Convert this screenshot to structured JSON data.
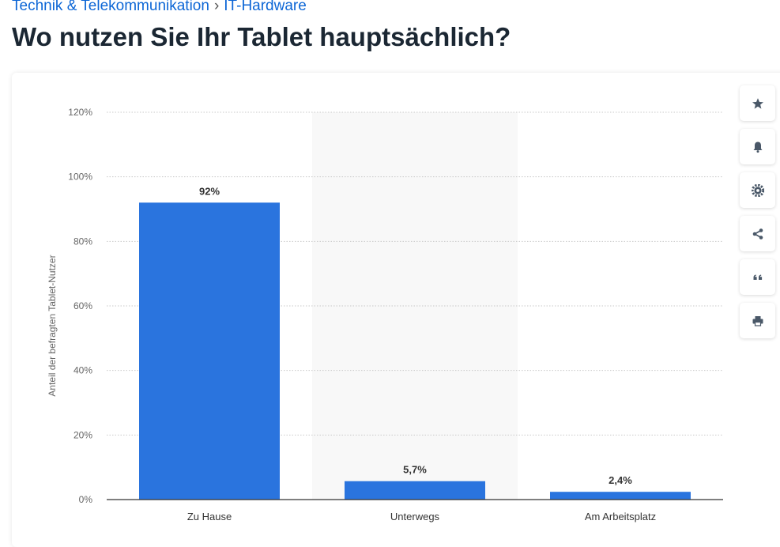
{
  "breadcrumb": {
    "items": [
      "Technik & Telekommunikation",
      "IT-Hardware"
    ],
    "separator": "›"
  },
  "page": {
    "title": "Wo nutzen Sie Ihr Tablet hauptsächlich?"
  },
  "toolbar": {
    "icons": [
      "star-icon",
      "bell-icon",
      "gear-icon",
      "share-icon",
      "quote-icon",
      "print-icon"
    ]
  },
  "colors": {
    "bar": "#2a74de",
    "accent": "#0c66d6",
    "title": "#1b2733"
  },
  "chart_data": {
    "type": "bar",
    "categories": [
      "Zu Hause",
      "Unterwegs",
      "Am Arbeitsplatz"
    ],
    "values": [
      92,
      5.7,
      2.4
    ],
    "value_labels": [
      "92%",
      "5,7%",
      "2,4%"
    ],
    "ylabel": "Anteil der befragten Tablet-Nutzer",
    "xlabel": "",
    "ylim": [
      0,
      120
    ],
    "yticks": [
      0,
      20,
      40,
      60,
      80,
      100,
      120
    ],
    "ytick_labels": [
      "0%",
      "20%",
      "40%",
      "60%",
      "80%",
      "100%",
      "120%"
    ],
    "grid": true,
    "highlighted_category_index": 1
  }
}
